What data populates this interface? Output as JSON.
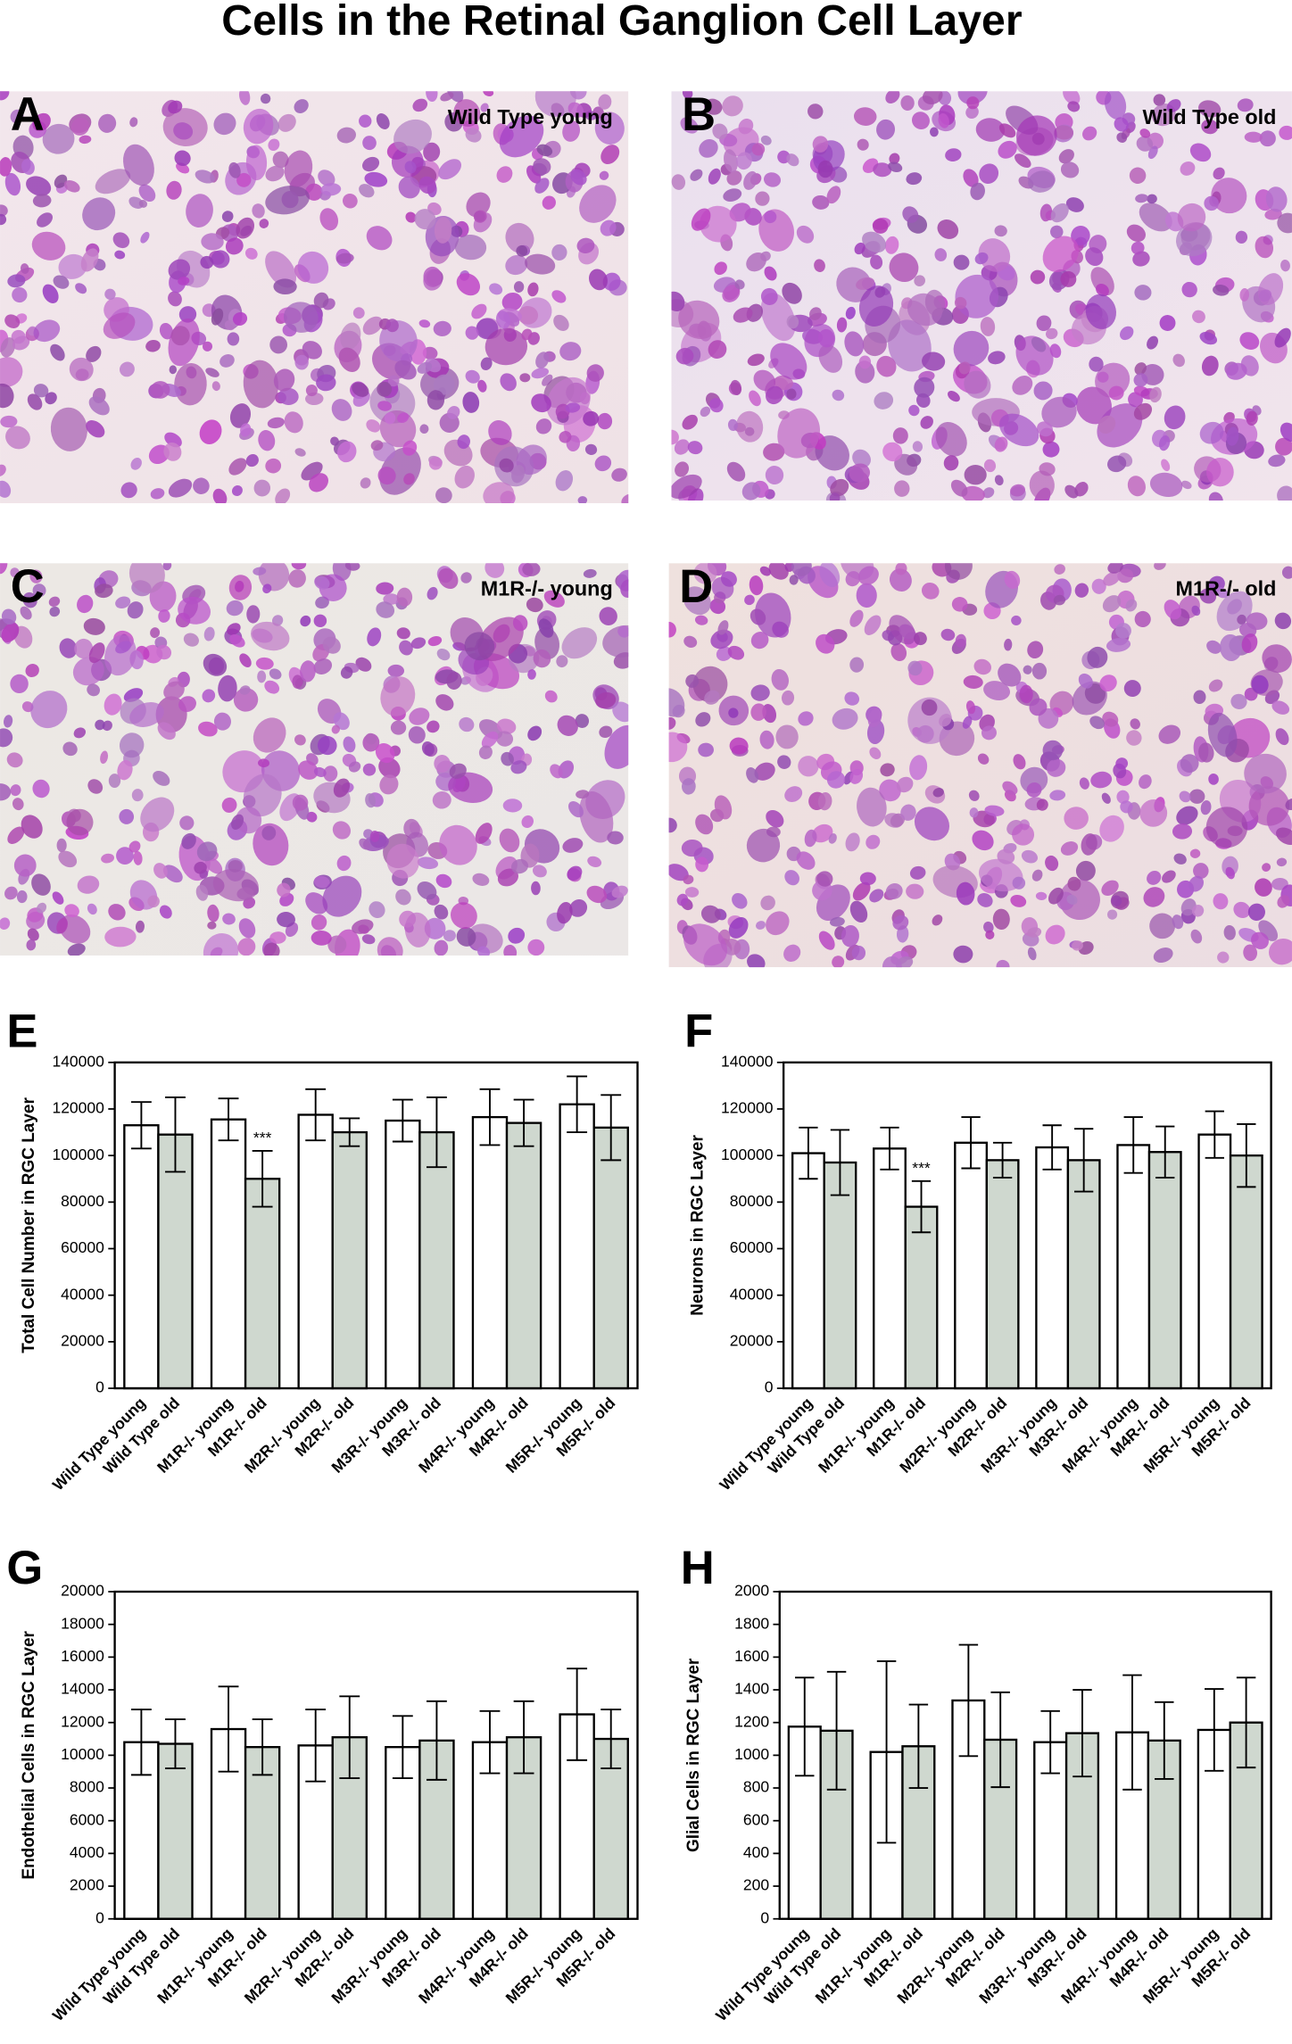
{
  "title": "Cells in the Retinal Ganglion Cell Layer",
  "photos": [
    {
      "panel": "A",
      "label": "Wild Type young"
    },
    {
      "panel": "B",
      "label": "Wild Type old"
    },
    {
      "panel": "C",
      "label": "M1R-/- young"
    },
    {
      "panel": "D",
      "label": "M1R-/- old"
    }
  ],
  "chart_data": [
    {
      "type": "bar",
      "panel": "E",
      "y_label": "Total Cell Number in RGC Layer",
      "categories": [
        "Wild Type young",
        "Wild Type old",
        "M1R-/- young",
        "M1R-/- old",
        "M2R-/- young",
        "M2R-/- old",
        "M3R-/- young",
        "M3R-/- old",
        "M4R-/- young",
        "M4R-/- old",
        "M5R-/- young",
        "M5R-/- old"
      ],
      "values": [
        113000,
        109000,
        115500,
        90000,
        117500,
        110000,
        115000,
        110000,
        116500,
        114000,
        122000,
        112000
      ],
      "errors": [
        10000,
        16000,
        9000,
        12000,
        11000,
        6000,
        9000,
        15000,
        12000,
        10000,
        12000,
        14000
      ],
      "colors": [
        "#ffffff",
        "#cfd8cf",
        "#ffffff",
        "#cfd8cf",
        "#ffffff",
        "#cfd8cf",
        "#ffffff",
        "#cfd8cf",
        "#ffffff",
        "#cfd8cf",
        "#ffffff",
        "#cfd8cf"
      ],
      "annotations": [
        {
          "text": "***",
          "category": "M1R-/- old"
        }
      ],
      "ylim": [
        0,
        140000
      ],
      "yticks": [
        0,
        20000,
        40000,
        60000,
        80000,
        100000,
        120000,
        140000
      ]
    },
    {
      "type": "bar",
      "panel": "F",
      "y_label": "Neurons in RGC Layer",
      "categories": [
        "Wild Type young",
        "Wild Type old",
        "M1R-/- young",
        "M1R-/- old",
        "M2R-/- young",
        "M2R-/- old",
        "M3R-/- young",
        "M3R-/- old",
        "M4R-/- young",
        "M4R-/- old",
        "M5R-/- young",
        "M5R-/- old"
      ],
      "values": [
        101000,
        97000,
        103000,
        78000,
        105500,
        98000,
        103500,
        98000,
        104500,
        101500,
        109000,
        100000
      ],
      "errors": [
        11000,
        14000,
        9000,
        11000,
        11000,
        7500,
        9500,
        13500,
        12000,
        11000,
        10000,
        13500
      ],
      "colors": [
        "#ffffff",
        "#cfd8cf",
        "#ffffff",
        "#cfd8cf",
        "#ffffff",
        "#cfd8cf",
        "#ffffff",
        "#cfd8cf",
        "#ffffff",
        "#cfd8cf",
        "#ffffff",
        "#cfd8cf"
      ],
      "annotations": [
        {
          "text": "***",
          "category": "M1R-/- old"
        }
      ],
      "ylim": [
        0,
        140000
      ],
      "yticks": [
        0,
        20000,
        40000,
        60000,
        80000,
        100000,
        120000,
        140000
      ]
    },
    {
      "type": "bar",
      "panel": "G",
      "y_label": "Endothelial Cells in RGC Layer",
      "categories": [
        "Wild Type young",
        "Wild Type old",
        "M1R-/- young",
        "M1R-/- old",
        "M2R-/- young",
        "M2R-/- old",
        "M3R-/- young",
        "M3R-/- old",
        "M4R-/- young",
        "M4R-/- old",
        "M5R-/- young",
        "M5R-/- old"
      ],
      "values": [
        10800,
        10700,
        11600,
        10500,
        10600,
        11100,
        10500,
        10900,
        10800,
        11100,
        12500,
        11000
      ],
      "errors": [
        2000,
        1500,
        2600,
        1700,
        2200,
        2500,
        1900,
        2400,
        1900,
        2200,
        2800,
        1800
      ],
      "colors": [
        "#ffffff",
        "#cfd8cf",
        "#ffffff",
        "#cfd8cf",
        "#ffffff",
        "#cfd8cf",
        "#ffffff",
        "#cfd8cf",
        "#ffffff",
        "#cfd8cf",
        "#ffffff",
        "#cfd8cf"
      ],
      "ylim": [
        0,
        20000
      ],
      "yticks": [
        0,
        2000,
        4000,
        6000,
        8000,
        10000,
        12000,
        14000,
        16000,
        18000,
        20000
      ]
    },
    {
      "type": "bar",
      "panel": "H",
      "y_label": "Glial Cells in RGC Layer",
      "categories": [
        "Wild Type young",
        "Wild Type old",
        "M1R-/- young",
        "M1R-/- old",
        "M2R-/- young",
        "M2R-/- old",
        "M3R-/- young",
        "M3R-/- old",
        "M4R-/- young",
        "M4R-/- old",
        "M5R-/- young",
        "M5R-/- old"
      ],
      "values": [
        1175,
        1150,
        1020,
        1055,
        1335,
        1095,
        1080,
        1135,
        1140,
        1090,
        1155,
        1200
      ],
      "errors": [
        300,
        360,
        555,
        255,
        340,
        290,
        190,
        265,
        350,
        235,
        250,
        275
      ],
      "colors": [
        "#ffffff",
        "#cfd8cf",
        "#ffffff",
        "#cfd8cf",
        "#ffffff",
        "#cfd8cf",
        "#ffffff",
        "#cfd8cf",
        "#ffffff",
        "#cfd8cf",
        "#ffffff",
        "#cfd8cf"
      ],
      "ylim": [
        0,
        2000
      ],
      "yticks": [
        0,
        200,
        400,
        600,
        800,
        1000,
        1200,
        1400,
        1600,
        1800,
        2000
      ]
    }
  ]
}
